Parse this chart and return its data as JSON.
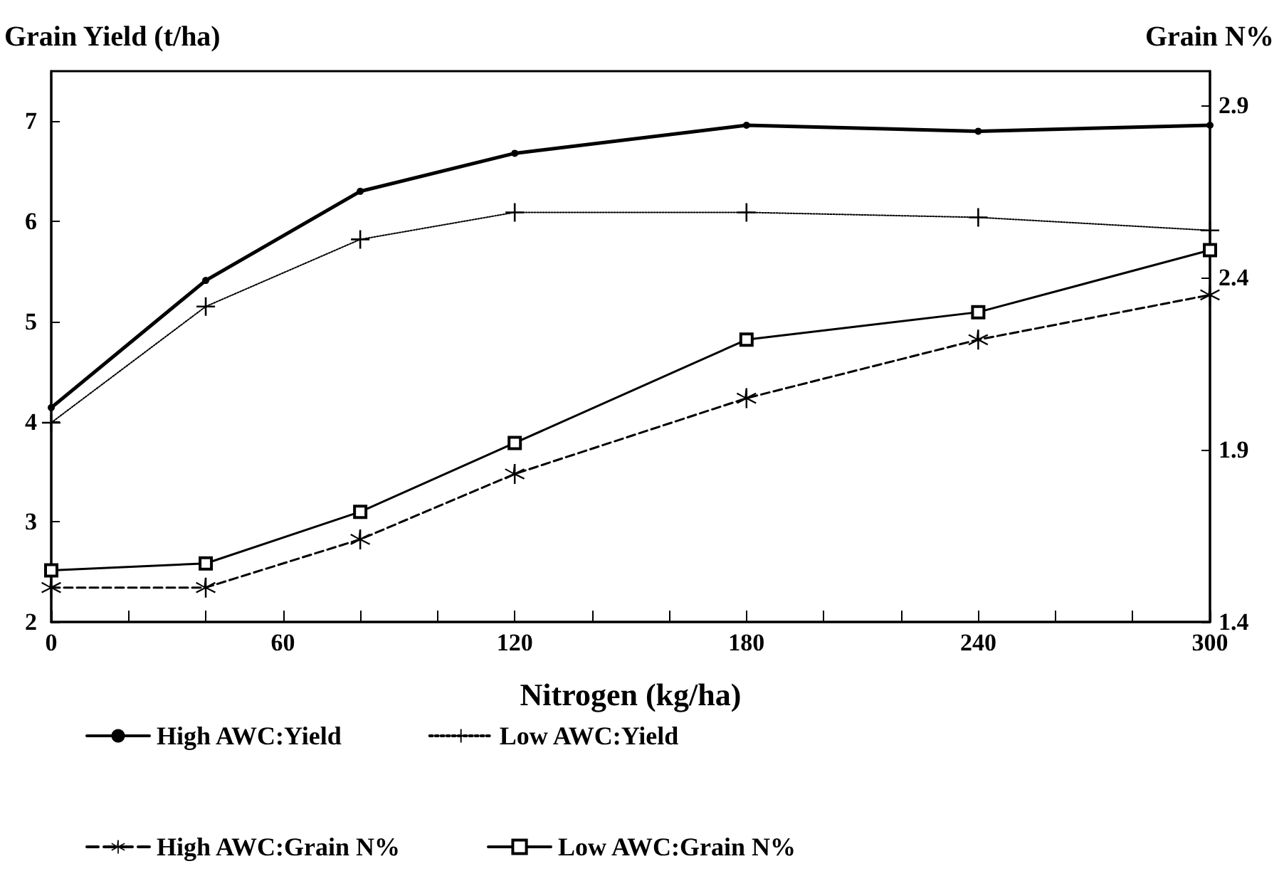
{
  "chart_data": {
    "type": "line",
    "xlabel": "Nitrogen (kg/ha)",
    "ylabel": "Grain Yield (t/ha)",
    "y2label": "Grain N%",
    "x": [
      0,
      40,
      80,
      120,
      180,
      240,
      300
    ],
    "xlim": [
      0,
      300
    ],
    "xticks": [
      0,
      {
        "value": 20,
        "label": null
      },
      {
        "value": 40,
        "label": null
      },
      60,
      {
        "value": 80,
        "label": null
      },
      {
        "value": 100,
        "label": null
      },
      120,
      {
        "value": 140,
        "label": null
      },
      {
        "value": 160,
        "label": null
      },
      180,
      {
        "value": 200,
        "label": null
      },
      {
        "value": 220,
        "label": null
      },
      240,
      {
        "value": 260,
        "label": null
      },
      {
        "value": 280,
        "label": null
      },
      300
    ],
    "ylim": [
      2,
      7.5
    ],
    "yticks": [
      2,
      3,
      4,
      5,
      6,
      7
    ],
    "y2lim": [
      1.4,
      3.0
    ],
    "y2ticks": [
      1.4,
      1.9,
      2.4,
      2.9
    ],
    "legend": "bottom",
    "series": [
      {
        "name": "High AWC:Yield",
        "color": "#000000",
        "marker": "circle",
        "line_style": "solid",
        "values": [
          4.14,
          5.41,
          6.3,
          6.68,
          6.96,
          6.9,
          6.96
        ]
      },
      {
        "name": "Low AWC:Yield",
        "color": "#000000",
        "marker": "cross",
        "line_style": "dotted",
        "values": [
          3.99,
          5.15,
          5.82,
          6.09,
          6.09,
          6.04,
          5.91
        ]
      },
      {
        "name": "High AWC:Grain N%",
        "color": "#000000",
        "marker": "star",
        "line_style": "dashed",
        "axis": "y2",
        "values": [
          1.5,
          1.5,
          1.64,
          1.83,
          2.05,
          2.22,
          2.35
        ]
      },
      {
        "name": "Low AWC:Grain N%",
        "color": "#000000",
        "marker": "square",
        "line_style": "solid",
        "axis": "y2",
        "values": [
          1.55,
          1.57,
          1.72,
          1.92,
          2.22,
          2.3,
          2.48
        ]
      }
    ]
  }
}
